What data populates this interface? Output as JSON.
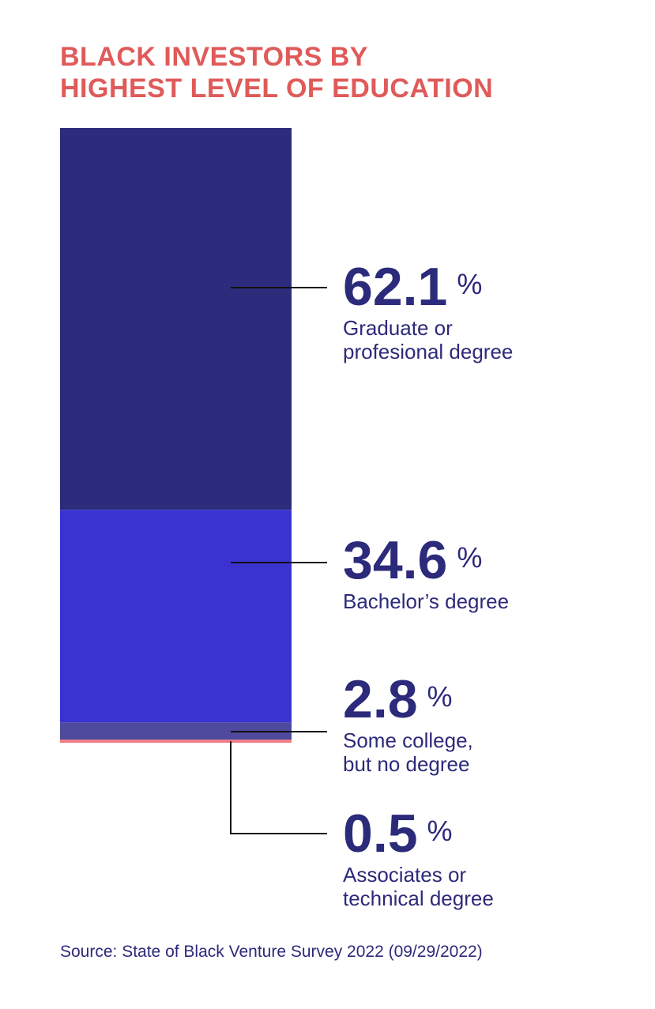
{
  "title_lines": [
    "BLACK INVESTORS BY",
    "HIGHEST LEVEL OF EDUCATION"
  ],
  "source": "Source: State of Black Venture Survey 2022 (09/29/2022)",
  "colors": {
    "title": "#e05a5a",
    "text": "#2c2a7a",
    "leader_line": "#111111"
  },
  "chart_data": {
    "type": "bar",
    "stacked": true,
    "unit": "%",
    "categories": [
      "Graduate or profesional degree",
      "Bachelor’s degree",
      "Some college, but no degree",
      "Associates or technical degree"
    ],
    "series": [
      {
        "value": 62.1,
        "display_value": "62.1",
        "label_lines": [
          "Graduate or",
          "profesional degree"
        ],
        "color": "#2d2b7b"
      },
      {
        "value": 34.6,
        "display_value": "34.6",
        "label_lines": [
          "Bachelor’s degree"
        ],
        "color": "#3b33d1"
      },
      {
        "value": 2.8,
        "display_value": "2.8",
        "label_lines": [
          "Some college,",
          "but no degree"
        ],
        "color": "#4f4a9e"
      },
      {
        "value": 0.5,
        "display_value": "0.5",
        "label_lines": [
          "Associates or",
          "technical degree"
        ],
        "color": "#f07d86"
      }
    ]
  }
}
